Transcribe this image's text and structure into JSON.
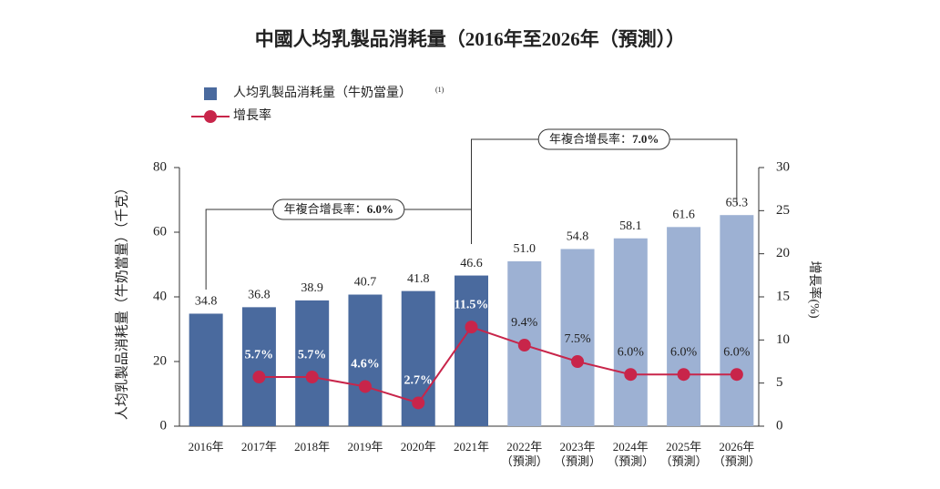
{
  "chart_data": {
    "type": "bar",
    "title": "中國人均乳製品消耗量（2016年至2026年（預測））",
    "y_label": "人均乳製品消耗量（牛奶當量）（千克）",
    "y2_label": "增長率(%)",
    "legend_note": "(1)",
    "categories": [
      [
        "2016年"
      ],
      [
        "2017年"
      ],
      [
        "2018年"
      ],
      [
        "2019年"
      ],
      [
        "2020年"
      ],
      [
        "2021年"
      ],
      [
        "2022年",
        "（預測）"
      ],
      [
        "2023年",
        "（預測）"
      ],
      [
        "2024年",
        "（預測）"
      ],
      [
        "2025年",
        "（預測）"
      ],
      [
        "2026年",
        "（預測）"
      ]
    ],
    "series": [
      {
        "name": "人均乳製品消耗量（牛奶當量）",
        "type": "bar",
        "axis": "y",
        "color": "#4a6a9e",
        "colors": [
          "#4a6a9e",
          "#4a6a9e",
          "#4a6a9e",
          "#4a6a9e",
          "#4a6a9e",
          "#4a6a9e",
          "#9db1d3",
          "#9db1d3",
          "#9db1d3",
          "#9db1d3",
          "#9db1d3"
        ],
        "values": [
          34.8,
          36.8,
          38.9,
          40.7,
          41.8,
          46.6,
          51.0,
          54.8,
          58.1,
          61.6,
          65.3
        ],
        "value_labels": [
          "34.8",
          "36.8",
          "38.9",
          "40.7",
          "41.8",
          "46.6",
          "51.0",
          "54.8",
          "58.1",
          "61.6",
          "65.3"
        ]
      },
      {
        "name": "增長率",
        "type": "line",
        "axis": "y2",
        "color": "#c8254a",
        "values": [
          null,
          5.7,
          5.7,
          4.6,
          2.7,
          11.5,
          9.4,
          7.5,
          6.0,
          6.0,
          6.0
        ],
        "value_labels": [
          null,
          "5.7%",
          "5.7%",
          "4.6%",
          "2.7%",
          "11.5%",
          "9.4%",
          "7.5%",
          "6.0%",
          "6.0%",
          "6.0%"
        ],
        "label_colors": [
          null,
          "#ffffff",
          "#ffffff",
          "#ffffff",
          "#ffffff",
          "#ffffff",
          "#222222",
          "#222222",
          "#222222",
          "#222222",
          "#222222"
        ]
      }
    ],
    "annotations": [
      {
        "text": "年複合增長率：",
        "value_text": "6.0%"
      },
      {
        "text": "年複合增長率：",
        "value_text": "7.0%"
      }
    ],
    "ylim": [
      0,
      80
    ],
    "yticks": [
      0,
      20,
      40,
      60,
      80
    ],
    "y2lim": [
      0,
      30
    ],
    "y2ticks": [
      0,
      5,
      10,
      15,
      20,
      25,
      30
    ]
  }
}
